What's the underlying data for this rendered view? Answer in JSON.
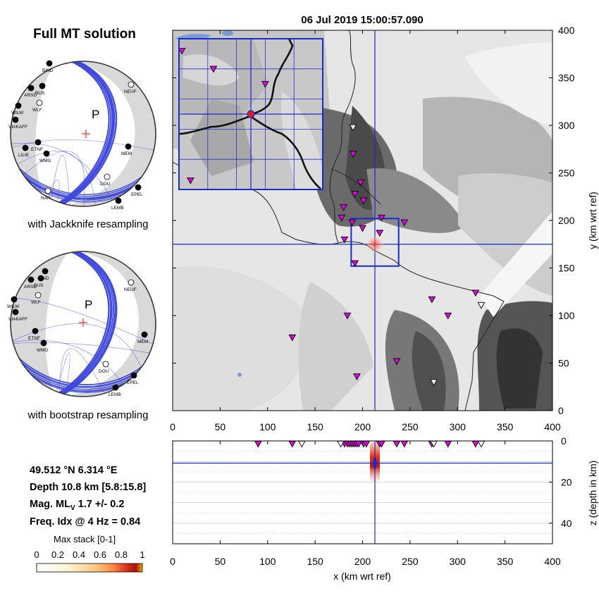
{
  "left_panel": {
    "title": "Full MT solution",
    "jackknife_caption": "with Jackknife resampling",
    "bootstrap_caption": "with bootstrap resampling",
    "p_label": "P",
    "stations_jackknife": [
      {
        "name": "BIND",
        "fill": "black"
      },
      {
        "name": "ARSD",
        "fill": "black"
      },
      {
        "name": "BUS",
        "fill": "black"
      },
      {
        "name": "WILW",
        "fill": "black"
      },
      {
        "name": "VIAKAFF",
        "fill": "black"
      },
      {
        "name": "WLF",
        "fill": "white"
      },
      {
        "name": "NEUF",
        "fill": "white"
      },
      {
        "name": "ETNF",
        "fill": "black"
      },
      {
        "name": "LILIE",
        "fill": "black"
      },
      {
        "name": "WMG",
        "fill": "black"
      },
      {
        "name": "MEM",
        "fill": "black"
      },
      {
        "name": "DOU",
        "fill": "white"
      },
      {
        "name": "NAR",
        "fill": "white"
      },
      {
        "name": "EPEL",
        "fill": "black"
      },
      {
        "name": "LEMB",
        "fill": "black"
      }
    ],
    "stations_bootstrap": [
      {
        "name": "BIND",
        "fill": "black"
      },
      {
        "name": "ARSD",
        "fill": "black"
      },
      {
        "name": "BUS",
        "fill": "black"
      },
      {
        "name": "WILW",
        "fill": "black"
      },
      {
        "name": "VIAKAFF",
        "fill": "black"
      },
      {
        "name": "WLF",
        "fill": "white"
      },
      {
        "name": "NEUF",
        "fill": "white"
      },
      {
        "name": "ETNF",
        "fill": "black"
      },
      {
        "name": "WMG",
        "fill": "black"
      },
      {
        "name": "MEM",
        "fill": "black"
      },
      {
        "name": "DOU",
        "fill": "white"
      },
      {
        "name": "EPEL",
        "fill": "black"
      },
      {
        "name": "LEMB",
        "fill": "black"
      }
    ]
  },
  "info": {
    "location": "49.512 °N 6.314 °E",
    "depth": "Depth 10.8 km [5.8:15.8]",
    "magnitude_prefix": "Mag. ML",
    "magnitude_sub": "V",
    "magnitude_value": " 1.7 +/- 0.2",
    "freq_index": "Freq. Idx @ 4 Hz = 0.84"
  },
  "colorbar": {
    "label": "Max stack [0-1]",
    "ticks": [
      "0",
      "0.2",
      "0.4",
      "0.6",
      "0.8",
      "1"
    ],
    "colors": [
      "#ffffff",
      "#fff6d8",
      "#ffd99a",
      "#ff9c52",
      "#e8381e",
      "#b40d0d",
      "#f0b000"
    ]
  },
  "map": {
    "title": "06 Jul 2019 15:00:57.090",
    "x_ticks": [
      0,
      50,
      100,
      150,
      200,
      250,
      300,
      350,
      400
    ],
    "y_ticks": [
      0,
      50,
      100,
      150,
      200,
      250,
      300,
      350,
      400
    ],
    "z_ticks": [
      0,
      20,
      40
    ],
    "xlabel": "x (km wrt ref)",
    "ylabel": "y (km wrt ref)",
    "zlabel": "z (depth in km)",
    "epicenter": {
      "x": 213,
      "y": 175,
      "z": 10.8
    },
    "zoom_box": {
      "x0": 188,
      "x1": 238,
      "y0": 152,
      "y1": 202
    },
    "stations_used": [
      {
        "x": 190,
        "y": 270
      },
      {
        "x": 198,
        "y": 240
      },
      {
        "x": 192,
        "y": 228
      },
      {
        "x": 201,
        "y": 221
      },
      {
        "x": 180,
        "y": 214
      },
      {
        "x": 178,
        "y": 203
      },
      {
        "x": 189,
        "y": 198
      },
      {
        "x": 200,
        "y": 192
      },
      {
        "x": 218,
        "y": 187
      },
      {
        "x": 220,
        "y": 203
      },
      {
        "x": 244,
        "y": 198
      },
      {
        "x": 181,
        "y": 180
      },
      {
        "x": 192,
        "y": 155
      },
      {
        "x": 184,
        "y": 100
      },
      {
        "x": 126,
        "y": 77
      },
      {
        "x": 194,
        "y": 36
      },
      {
        "x": 236,
        "y": 52
      },
      {
        "x": 273,
        "y": 117
      },
      {
        "x": 290,
        "y": 100
      },
      {
        "x": 319,
        "y": 124
      }
    ],
    "stations_unused": [
      {
        "x": 190,
        "y": 298
      },
      {
        "x": 275,
        "y": 30
      },
      {
        "x": 325,
        "y": 111
      }
    ],
    "depth_stations_used": [
      90,
      126,
      181,
      184,
      186,
      188,
      190,
      192,
      194,
      196,
      201,
      204,
      218,
      220,
      236,
      244,
      273,
      290,
      319
    ],
    "depth_stations_unused": [
      136,
      177,
      275,
      325
    ]
  }
}
